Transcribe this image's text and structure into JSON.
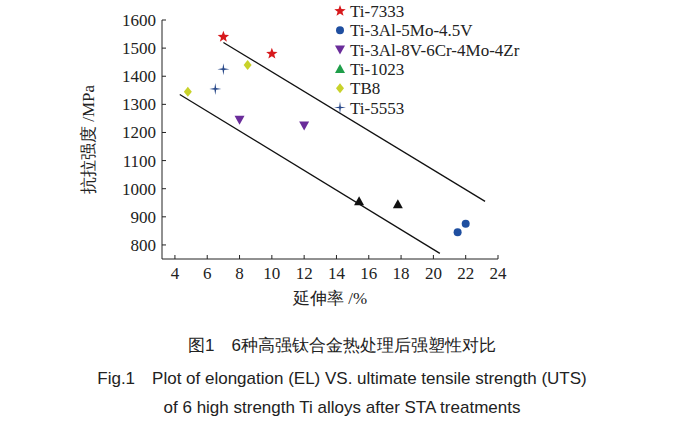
{
  "chart_data": {
    "type": "scatter",
    "title": "图1　6种高强钛合金热处理后强塑性对比",
    "subtitle": [
      "Fig.1　Plot of elongation (EL) VS. ultimate tensile strength (UTS)",
      "of 6 high strength Ti alloys after STA treatments"
    ],
    "x_label": "延伸率 /%",
    "y_label": "抗拉强度 /MPa",
    "xlim": [
      3.2,
      24
    ],
    "xticks": [
      4,
      6,
      8,
      10,
      12,
      14,
      16,
      18,
      20,
      22,
      24
    ],
    "ylim": [
      750,
      1600
    ],
    "yticks": [
      800,
      900,
      1000,
      1100,
      1200,
      1300,
      1400,
      1500,
      1600
    ],
    "grid": false,
    "legend": "top-right",
    "series": [
      {
        "name": "Ti-7333",
        "color": "#d7191c",
        "marker": "star",
        "x": [
          7,
          10
        ],
        "values": [
          1540,
          1480
        ]
      },
      {
        "name": "Ti-3Al-5Mo-4.5V",
        "color": "#1f4fa0",
        "marker": "circle",
        "x": [
          21.5,
          22
        ],
        "values": [
          845,
          875
        ]
      },
      {
        "name": "Ti-3Al-8V-6Cr-4Mo-4Zr",
        "color": "#6a2c9a",
        "marker": "triangle-down",
        "x": [
          8,
          12
        ],
        "values": [
          1245,
          1225
        ]
      },
      {
        "name": "Ti-1023",
        "color": "#1f9e4a",
        "colors": [
          "#111111",
          "#111111"
        ],
        "marker": "triangle",
        "x": [
          15.4,
          17.8
        ],
        "values": [
          955,
          945
        ]
      },
      {
        "name": "TB8",
        "color": "#c8d22a",
        "marker": "diamond",
        "x": [
          4.8,
          8.5
        ],
        "values": [
          1345,
          1440
        ]
      },
      {
        "name": "Ti-5553",
        "color": "#2a4a8a",
        "marker": "plus",
        "x": [
          6.5,
          7
        ],
        "values": [
          1355,
          1425
        ]
      }
    ],
    "trend_lines": [
      {
        "color": "#111111",
        "x": [
          7,
          23.2
        ],
        "values": [
          1520,
          955
        ]
      },
      {
        "color": "#111111",
        "x": [
          4.3,
          20.4
        ],
        "values": [
          1335,
          770
        ]
      }
    ]
  }
}
